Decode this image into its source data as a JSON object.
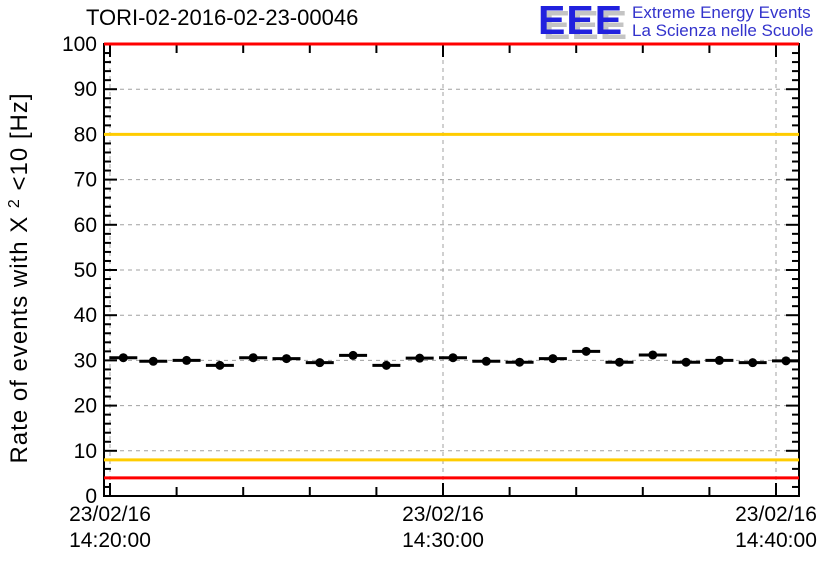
{
  "logo": {
    "acronym": "EEE",
    "line1": "Extreme Energy Events",
    "line2": "La Scienza nelle Scuole",
    "acronym_color": "#2121de",
    "acronym_shadow_color": "#c4c4c4",
    "text_color": "#3333cc"
  },
  "chart_data": {
    "type": "scatter",
    "title": "TORI-02-2016-02-23-00046",
    "ylabel": "Rate of events with X^2<10 [Hz]",
    "ylabel_parts": {
      "prefix": "Rate of events with X",
      "sup": "2",
      "suffix": "<10 [Hz]"
    },
    "ylim": [
      0,
      100
    ],
    "y_major_step": 10,
    "y_minor_step": 2,
    "grid": "dashed gray at major ticks",
    "grid_color": "#a0a0a0",
    "axis_color": "#000000",
    "x_axis": {
      "date": "23/02/16",
      "range_min": [
        -0.18,
        20.7
      ],
      "minor_step_min": 2,
      "ticks": [
        {
          "t_min": 0,
          "date": "23/02/16",
          "time": "14:20:00"
        },
        {
          "t_min": 10,
          "date": "23/02/16",
          "time": "14:30:00"
        },
        {
          "t_min": 20,
          "date": "23/02/16",
          "time": "14:40:00"
        }
      ]
    },
    "thresholds": [
      {
        "value": 100,
        "color": "#ff0000"
      },
      {
        "value": 80,
        "color": "#ffcc00"
      },
      {
        "value": 8,
        "color": "#ffcc00"
      },
      {
        "value": 4,
        "color": "#ff0000"
      }
    ],
    "series": [
      {
        "name": "event-rate",
        "marker": "filled-circle",
        "color": "#000000",
        "xerr_min": 0.42,
        "t_min": [
          0.4,
          1.3,
          2.3,
          3.3,
          4.3,
          5.3,
          6.3,
          7.3,
          8.3,
          9.3,
          10.3,
          11.3,
          12.3,
          13.3,
          14.3,
          15.3,
          16.3,
          17.3,
          18.3,
          19.3,
          20.3
        ],
        "rate_hz": [
          30.6,
          29.8,
          30.0,
          28.9,
          30.6,
          30.4,
          29.5,
          31.1,
          28.9,
          30.5,
          30.6,
          29.8,
          29.6,
          30.4,
          32.0,
          29.6,
          31.2,
          29.6,
          30.0,
          29.5,
          29.9
        ]
      }
    ]
  }
}
